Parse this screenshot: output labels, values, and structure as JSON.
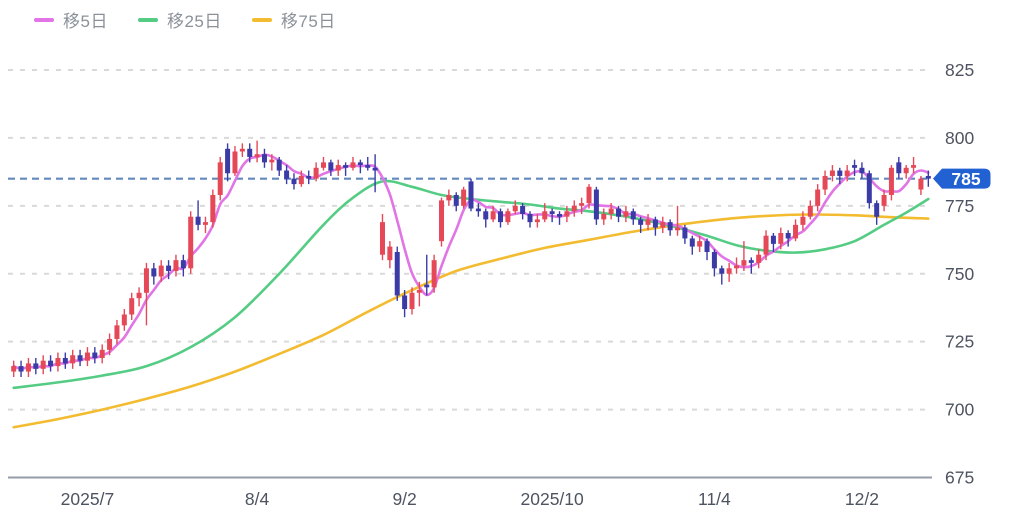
{
  "chart_data": {
    "type": "candlestick",
    "title": "",
    "y_axis": {
      "min": 675,
      "max": 825,
      "tick_step": 25,
      "ticks": [
        825,
        800,
        775,
        750,
        725,
        700,
        675
      ],
      "position": "right",
      "grid": "dashed"
    },
    "x_ticks": [
      {
        "day": 10,
        "label": "2025/7"
      },
      {
        "day": 33,
        "label": "8/4"
      },
      {
        "day": 53,
        "label": "9/2"
      },
      {
        "day": 73,
        "label": "2025/10"
      },
      {
        "day": 95,
        "label": "11/4"
      },
      {
        "day": 115,
        "label": "12/2"
      }
    ],
    "current_price": 785,
    "current_price_label": "785",
    "legend_position": "top-left",
    "series": [
      {
        "name": "ma5",
        "label": "移5日",
        "type": "moving-average",
        "window": 5,
        "color": "#e175e5",
        "derived_from": "closes"
      },
      {
        "name": "ma25",
        "label": "移25日",
        "type": "moving-average",
        "window": 25,
        "color": "#55cc84",
        "points": [
          [
            0,
            708
          ],
          [
            6,
            710
          ],
          [
            12,
            712.5
          ],
          [
            18,
            716
          ],
          [
            24,
            723
          ],
          [
            30,
            734
          ],
          [
            36,
            750
          ],
          [
            42,
            768
          ],
          [
            46,
            778
          ],
          [
            50,
            784
          ],
          [
            54,
            782
          ],
          [
            58,
            779
          ],
          [
            62,
            777.5
          ],
          [
            66,
            776.5
          ],
          [
            70,
            775.5
          ],
          [
            74,
            774
          ],
          [
            78,
            773
          ],
          [
            82,
            771.5
          ],
          [
            86,
            769.5
          ],
          [
            90,
            767
          ],
          [
            94,
            764
          ],
          [
            98,
            760.5
          ],
          [
            102,
            758.5
          ],
          [
            106,
            757.8
          ],
          [
            110,
            759
          ],
          [
            114,
            762
          ],
          [
            118,
            768
          ],
          [
            121,
            772.5
          ],
          [
            124,
            777.5
          ]
        ]
      },
      {
        "name": "ma75",
        "label": "移75日",
        "type": "moving-average",
        "window": 75,
        "color": "#f3bb2f",
        "points": [
          [
            0,
            693.5
          ],
          [
            6,
            696.5
          ],
          [
            12,
            700
          ],
          [
            18,
            704
          ],
          [
            24,
            708.5
          ],
          [
            30,
            714
          ],
          [
            36,
            720.5
          ],
          [
            42,
            727.5
          ],
          [
            48,
            736
          ],
          [
            54,
            744
          ],
          [
            60,
            751
          ],
          [
            66,
            755.5
          ],
          [
            72,
            759.5
          ],
          [
            78,
            762.5
          ],
          [
            84,
            765.5
          ],
          [
            90,
            768
          ],
          [
            96,
            770
          ],
          [
            102,
            771.3
          ],
          [
            108,
            771.8
          ],
          [
            114,
            771.5
          ],
          [
            119,
            770.8
          ],
          [
            124,
            770.3
          ]
        ]
      }
    ],
    "candles_format": [
      "open",
      "high",
      "low",
      "close"
    ],
    "candles": [
      [
        714,
        718,
        712,
        716
      ],
      [
        716,
        718,
        712,
        714
      ],
      [
        714,
        719,
        712,
        717
      ],
      [
        717,
        719,
        713,
        715
      ],
      [
        715,
        720,
        713,
        718
      ],
      [
        718,
        720,
        714,
        716
      ],
      [
        716,
        721,
        714,
        719
      ],
      [
        719,
        721,
        715,
        717
      ],
      [
        717,
        722,
        715,
        720
      ],
      [
        720,
        722,
        716,
        718
      ],
      [
        718,
        723,
        716,
        721
      ],
      [
        721,
        723,
        717,
        719
      ],
      [
        719,
        724,
        717,
        722
      ],
      [
        722,
        728,
        720,
        726
      ],
      [
        726,
        733,
        724,
        731
      ],
      [
        731,
        737,
        729,
        735
      ],
      [
        735,
        743,
        733,
        741
      ],
      [
        741,
        745,
        738,
        743
      ],
      [
        743,
        754,
        731,
        752
      ],
      [
        752,
        754,
        746,
        749
      ],
      [
        749,
        755,
        747,
        753
      ],
      [
        753,
        755,
        748,
        751
      ],
      [
        751,
        757,
        749,
        755
      ],
      [
        755,
        757,
        749,
        752
      ],
      [
        752,
        773,
        750,
        771
      ],
      [
        771,
        777,
        766,
        768
      ],
      [
        768,
        771,
        765,
        769
      ],
      [
        769,
        781,
        767,
        779
      ],
      [
        779,
        793,
        777,
        791
      ],
      [
        796,
        798,
        784,
        787
      ],
      [
        787,
        797,
        786,
        795
      ],
      [
        795,
        798,
        793,
        796
      ],
      [
        796,
        798,
        791,
        793
      ],
      [
        793,
        799,
        791,
        794
      ],
      [
        794,
        796,
        789,
        791
      ],
      [
        791,
        794,
        788,
        792
      ],
      [
        792,
        793,
        786,
        788
      ],
      [
        788,
        790,
        783,
        785
      ],
      [
        785,
        787,
        781,
        783
      ],
      [
        783,
        788,
        782,
        786
      ],
      [
        786,
        788,
        783,
        785
      ],
      [
        785,
        791,
        784,
        789
      ],
      [
        789,
        793,
        788,
        791
      ],
      [
        791,
        792,
        786,
        788
      ],
      [
        788,
        792,
        786,
        790
      ],
      [
        790,
        791,
        786,
        789
      ],
      [
        789,
        793,
        788,
        791
      ],
      [
        791,
        792,
        787,
        790
      ],
      [
        790,
        793,
        788,
        789
      ],
      [
        789,
        794,
        780,
        788
      ],
      [
        757,
        772,
        755,
        769
      ],
      [
        755,
        762,
        752,
        760
      ],
      [
        758,
        760,
        740,
        742
      ],
      [
        742,
        744,
        734,
        737
      ],
      [
        737,
        745,
        735,
        743
      ],
      [
        743,
        747,
        738,
        744
      ],
      [
        746,
        757,
        742,
        745
      ],
      [
        745,
        757,
        743,
        755
      ],
      [
        762,
        778,
        760,
        777
      ],
      [
        777,
        781,
        775,
        779
      ],
      [
        779,
        780,
        773,
        775
      ],
      [
        775,
        782,
        774,
        781
      ],
      [
        784,
        785,
        773,
        774
      ],
      [
        774,
        776,
        771,
        773
      ],
      [
        773,
        774,
        767,
        770
      ],
      [
        770,
        775,
        769,
        773
      ],
      [
        773,
        774,
        767,
        769
      ],
      [
        769,
        774,
        768,
        773
      ],
      [
        773,
        777,
        772,
        775
      ],
      [
        775,
        776,
        770,
        772
      ],
      [
        772,
        773,
        767,
        769
      ],
      [
        769,
        772,
        767,
        770
      ],
      [
        770,
        776,
        769,
        773
      ],
      [
        773,
        774,
        769,
        772
      ],
      [
        772,
        773,
        768,
        771
      ],
      [
        771,
        775,
        769,
        773
      ],
      [
        773,
        777,
        771,
        775
      ],
      [
        775,
        778,
        772,
        776
      ],
      [
        776,
        783,
        774,
        782
      ],
      [
        781,
        782,
        768,
        770
      ],
      [
        770,
        774,
        768,
        772
      ],
      [
        772,
        776,
        770,
        774
      ],
      [
        774,
        775,
        769,
        771
      ],
      [
        771,
        775,
        769,
        773
      ],
      [
        773,
        774,
        768,
        770
      ],
      [
        770,
        771,
        765,
        768
      ],
      [
        768,
        772,
        766,
        770
      ],
      [
        770,
        771,
        764,
        767
      ],
      [
        767,
        771,
        765,
        769
      ],
      [
        769,
        770,
        764,
        766
      ],
      [
        766,
        775,
        764,
        767
      ],
      [
        767,
        768,
        761,
        763
      ],
      [
        763,
        764,
        757,
        760
      ],
      [
        760,
        764,
        758,
        762
      ],
      [
        762,
        763,
        755,
        758
      ],
      [
        758,
        759,
        749,
        752
      ],
      [
        752,
        753,
        746,
        750
      ],
      [
        750,
        754,
        747,
        752
      ],
      [
        752,
        756,
        750,
        753
      ],
      [
        753,
        762,
        751,
        755
      ],
      [
        755,
        756,
        750,
        754
      ],
      [
        754,
        759,
        752,
        757
      ],
      [
        757,
        766,
        755,
        764
      ],
      [
        764,
        765,
        758,
        761
      ],
      [
        761,
        767,
        759,
        765
      ],
      [
        765,
        766,
        760,
        763
      ],
      [
        763,
        770,
        762,
        768
      ],
      [
        768,
        773,
        766,
        771
      ],
      [
        771,
        777,
        770,
        775
      ],
      [
        775,
        783,
        773,
        781
      ],
      [
        781,
        788,
        779,
        786
      ],
      [
        786,
        790,
        784,
        788
      ],
      [
        788,
        789,
        783,
        786
      ],
      [
        786,
        790,
        784,
        788
      ],
      [
        790,
        792,
        786,
        789
      ],
      [
        789,
        791,
        785,
        787
      ],
      [
        787,
        788,
        774,
        776
      ],
      [
        776,
        777,
        768,
        771
      ],
      [
        775,
        781,
        773,
        779
      ],
      [
        779,
        790,
        777,
        789
      ],
      [
        791,
        793,
        785,
        787
      ],
      [
        787,
        790,
        785,
        789
      ],
      [
        789,
        793,
        787,
        790
      ],
      [
        781,
        786,
        779,
        785
      ],
      [
        786,
        788,
        782,
        785
      ]
    ],
    "colors": {
      "up_candle": "#e54857",
      "down_candle": "#3b3ba7",
      "grid": "#d9d9d9",
      "axis_line": "#959ca8",
      "axis_text": "#4d5360",
      "current_price_line": "#6288bd",
      "badge_bg": "#2161d2",
      "badge_text": "#ffffff",
      "background": "#ffffff"
    }
  }
}
